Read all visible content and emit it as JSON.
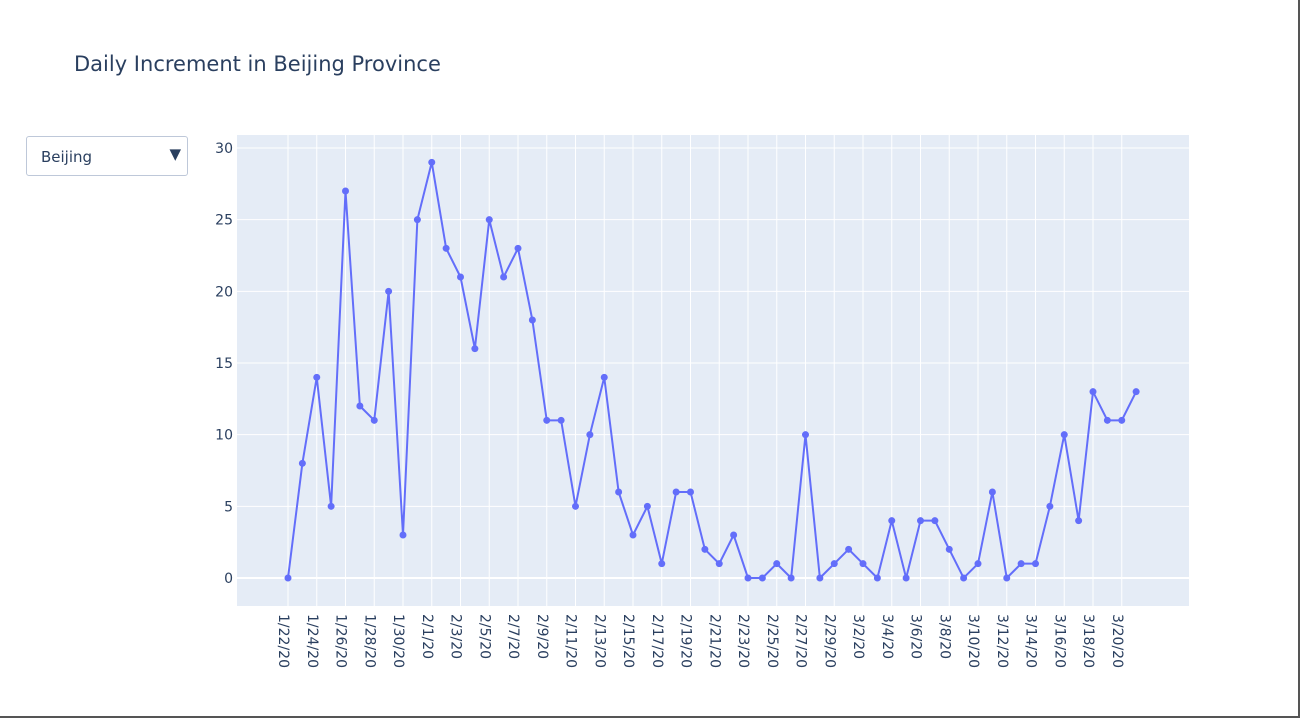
{
  "title": "Daily Increment in Beijing Province",
  "dropdown": {
    "selected": "Beijing",
    "arrow_icon": "triangle-down-icon"
  },
  "chart_data": {
    "type": "line",
    "title": "Daily Increment in Beijing Province",
    "xlabel": "",
    "ylabel": "",
    "ylim": [
      -2,
      31
    ],
    "grid": true,
    "series_color": "#636efa",
    "plot_bg": "#e5ecf6",
    "yticks": [
      0,
      5,
      10,
      15,
      20,
      25,
      30
    ],
    "xticks": [
      "1/22/20",
      "1/24/20",
      "1/26/20",
      "1/28/20",
      "1/30/20",
      "2/1/20",
      "2/3/20",
      "2/5/20",
      "2/7/20",
      "2/9/20",
      "2/11/20",
      "2/13/20",
      "2/15/20",
      "2/17/20",
      "2/19/20",
      "2/21/20",
      "2/23/20",
      "2/25/20",
      "2/27/20",
      "2/29/20",
      "3/2/20",
      "3/4/20",
      "3/6/20",
      "3/8/20",
      "3/10/20",
      "3/12/20",
      "3/14/20",
      "3/16/20",
      "3/18/20",
      "3/20/20"
    ],
    "x": [
      "1/22/20",
      "1/23/20",
      "1/24/20",
      "1/25/20",
      "1/26/20",
      "1/27/20",
      "1/28/20",
      "1/29/20",
      "1/30/20",
      "1/31/20",
      "2/1/20",
      "2/2/20",
      "2/3/20",
      "2/4/20",
      "2/5/20",
      "2/6/20",
      "2/7/20",
      "2/8/20",
      "2/9/20",
      "2/10/20",
      "2/11/20",
      "2/12/20",
      "2/13/20",
      "2/14/20",
      "2/15/20",
      "2/16/20",
      "2/17/20",
      "2/18/20",
      "2/19/20",
      "2/20/20",
      "2/21/20",
      "2/22/20",
      "2/23/20",
      "2/24/20",
      "2/25/20",
      "2/26/20",
      "2/27/20",
      "2/28/20",
      "2/29/20",
      "3/1/20",
      "3/2/20",
      "3/3/20",
      "3/4/20",
      "3/5/20",
      "3/6/20",
      "3/7/20",
      "3/8/20",
      "3/9/20",
      "3/10/20",
      "3/11/20",
      "3/12/20",
      "3/13/20",
      "3/14/20",
      "3/15/20",
      "3/16/20",
      "3/17/20",
      "3/18/20",
      "3/19/20",
      "3/20/20",
      "3/21/20"
    ],
    "values": [
      0,
      8,
      14,
      5,
      27,
      12,
      11,
      20,
      3,
      25,
      29,
      23,
      21,
      16,
      25,
      21,
      23,
      18,
      11,
      11,
      5,
      10,
      14,
      6,
      3,
      5,
      1,
      6,
      6,
      2,
      1,
      3,
      0,
      0,
      1,
      0,
      10,
      0,
      1,
      2,
      1,
      0,
      4,
      0,
      4,
      4,
      2,
      0,
      1,
      6,
      0,
      1,
      1,
      5,
      10,
      4,
      13,
      11,
      11,
      13
    ]
  }
}
